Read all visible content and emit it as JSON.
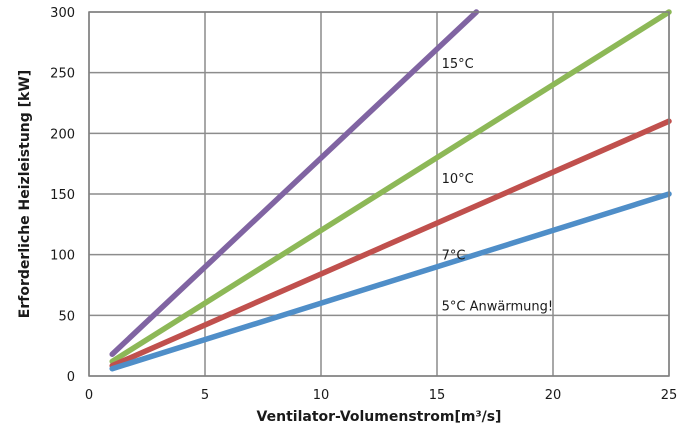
{
  "chart_data": {
    "type": "line",
    "title": "",
    "xlabel": "Ventilator-Volumenstrom[m³/s]",
    "ylabel": "Erforderliche  Heizleistung [kW]",
    "xlim": [
      0,
      25
    ],
    "ylim": [
      0,
      300
    ],
    "xticks": [
      "0",
      "5",
      "10",
      "15",
      "20",
      "25"
    ],
    "yticks": [
      "0",
      "50",
      "100",
      "150",
      "200",
      "250",
      "300"
    ],
    "grid": true,
    "series": [
      {
        "color": "#8064a2",
        "x": [
          1,
          16.7
        ],
        "y": [
          18,
          300
        ]
      },
      {
        "color": "#8db857",
        "x": [
          1,
          25
        ],
        "y": [
          12,
          300
        ]
      },
      {
        "color": "#c0504d",
        "x": [
          1,
          25
        ],
        "y": [
          8.5,
          210
        ]
      },
      {
        "color": "#4f8ec8",
        "x": [
          1,
          25
        ],
        "y": [
          6,
          150
        ]
      }
    ],
    "annotations": [
      {
        "text": "15°C",
        "x": 15.2,
        "y": 258
      },
      {
        "text": "10°C",
        "x": 15.2,
        "y": 163
      },
      {
        "text": "7°C",
        "x": 15.2,
        "y": 100
      },
      {
        "text": "5°C  Anwärmung!",
        "x": 15.2,
        "y": 58
      }
    ]
  }
}
